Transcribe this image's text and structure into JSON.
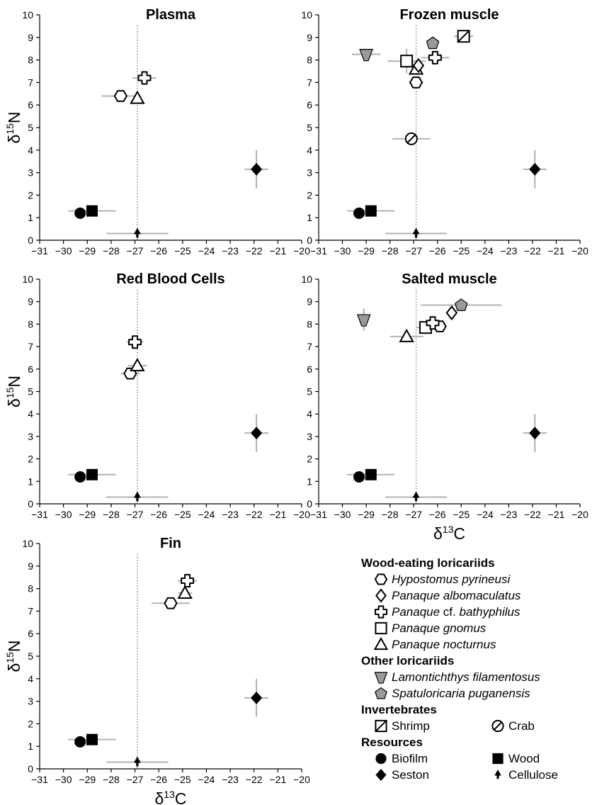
{
  "chart_data": [
    {
      "type": "scatter",
      "title": "Plasma",
      "xlabel": "",
      "ylabel": "δ15N",
      "xlim": [
        -31,
        -20
      ],
      "ylim": [
        0,
        10
      ],
      "vline": -26.9,
      "points": [
        {
          "group": "biofilm",
          "x": -29.3,
          "y": 1.2,
          "xerr": 0,
          "yerr": 0
        },
        {
          "group": "wood",
          "x": -28.8,
          "y": 1.3,
          "xerr": 1.0,
          "yerr": 0
        },
        {
          "group": "seston",
          "x": -21.9,
          "y": 3.15,
          "xerr": 0.5,
          "yerr": 0.85
        },
        {
          "group": "cellulose",
          "x": -26.9,
          "y": 0.3,
          "xerr": 1.3,
          "yerr": 0
        },
        {
          "group": "hypostomus",
          "x": -27.6,
          "y": 6.4,
          "xerr": 0.8,
          "yerr": 0
        },
        {
          "group": "nocturnus",
          "x": -26.9,
          "y": 6.3,
          "xerr": 0,
          "yerr": 0
        },
        {
          "group": "bathyphilus",
          "x": -26.6,
          "y": 7.2,
          "xerr": 0.5,
          "yerr": 0
        }
      ]
    },
    {
      "type": "scatter",
      "title": "Frozen muscle",
      "xlabel": "",
      "ylabel": "",
      "xlim": [
        -31,
        -20
      ],
      "ylim": [
        0,
        10
      ],
      "vline": -26.9,
      "points": [
        {
          "group": "biofilm",
          "x": -29.3,
          "y": 1.2,
          "xerr": 0,
          "yerr": 0
        },
        {
          "group": "wood",
          "x": -28.8,
          "y": 1.3,
          "xerr": 1.0,
          "yerr": 0
        },
        {
          "group": "seston",
          "x": -21.9,
          "y": 3.15,
          "xerr": 0.5,
          "yerr": 0.85
        },
        {
          "group": "cellulose",
          "x": -26.9,
          "y": 0.3,
          "xerr": 1.3,
          "yerr": 0
        },
        {
          "group": "crab",
          "x": -27.1,
          "y": 4.5,
          "xerr": 0.8,
          "yerr": 0
        },
        {
          "group": "hypostomus",
          "x": -26.9,
          "y": 7.0,
          "xerr": 0.3,
          "yerr": 0
        },
        {
          "group": "nocturnus",
          "x": -26.9,
          "y": 7.6,
          "xerr": 0,
          "yerr": 0
        },
        {
          "group": "albomaculatus",
          "x": -26.8,
          "y": 7.75,
          "xerr": 0,
          "yerr": 0
        },
        {
          "group": "gnomus",
          "x": -27.3,
          "y": 7.95,
          "xerr": 0.8,
          "yerr": 0.55
        },
        {
          "group": "bathyphilus",
          "x": -26.1,
          "y": 8.1,
          "xerr": 0.6,
          "yerr": 0
        },
        {
          "group": "lamontichthys",
          "x": -29.0,
          "y": 8.25,
          "xerr": 0.6,
          "yerr": 0
        },
        {
          "group": "spatuloricaria",
          "x": -26.2,
          "y": 8.75,
          "xerr": 0,
          "yerr": 0
        },
        {
          "group": "shrimp",
          "x": -24.9,
          "y": 9.05,
          "xerr": 0.4,
          "yerr": 0
        }
      ]
    },
    {
      "type": "scatter",
      "title": "Red Blood Cells",
      "xlabel": "",
      "ylabel": "δ15N",
      "xlim": [
        -31,
        -20
      ],
      "ylim": [
        0,
        10
      ],
      "vline": -26.9,
      "points": [
        {
          "group": "biofilm",
          "x": -29.3,
          "y": 1.2,
          "xerr": 0,
          "yerr": 0
        },
        {
          "group": "wood",
          "x": -28.8,
          "y": 1.3,
          "xerr": 1.0,
          "yerr": 0
        },
        {
          "group": "seston",
          "x": -21.9,
          "y": 3.15,
          "xerr": 0.5,
          "yerr": 0.85
        },
        {
          "group": "cellulose",
          "x": -26.9,
          "y": 0.3,
          "xerr": 1.3,
          "yerr": 0
        },
        {
          "group": "hypostomus",
          "x": -27.2,
          "y": 5.8,
          "xerr": 0.4,
          "yerr": 0
        },
        {
          "group": "nocturnus",
          "x": -26.9,
          "y": 6.15,
          "xerr": 0.4,
          "yerr": 0
        },
        {
          "group": "bathyphilus",
          "x": -27.0,
          "y": 7.2,
          "xerr": 0.35,
          "yerr": 0
        }
      ]
    },
    {
      "type": "scatter",
      "title": "Salted muscle",
      "xlabel": "δ13C",
      "ylabel": "",
      "xlim": [
        -31,
        -20
      ],
      "ylim": [
        0,
        10
      ],
      "vline": -26.9,
      "points": [
        {
          "group": "biofilm",
          "x": -29.3,
          "y": 1.2,
          "xerr": 0,
          "yerr": 0
        },
        {
          "group": "wood",
          "x": -28.8,
          "y": 1.3,
          "xerr": 1.0,
          "yerr": 0
        },
        {
          "group": "seston",
          "x": -21.9,
          "y": 3.15,
          "xerr": 0.5,
          "yerr": 0.85
        },
        {
          "group": "cellulose",
          "x": -26.9,
          "y": 0.3,
          "xerr": 1.3,
          "yerr": 0
        },
        {
          "group": "nocturnus",
          "x": -27.3,
          "y": 7.45,
          "xerr": 0.7,
          "yerr": 0
        },
        {
          "group": "gnomus",
          "x": -26.5,
          "y": 7.85,
          "xerr": 0.4,
          "yerr": 0
        },
        {
          "group": "hypostomus",
          "x": -25.9,
          "y": 7.9,
          "xerr": 0,
          "yerr": 0
        },
        {
          "group": "bathyphilus",
          "x": -26.2,
          "y": 8.05,
          "xerr": 0.3,
          "yerr": 0
        },
        {
          "group": "lamontichthys",
          "x": -29.1,
          "y": 8.2,
          "xerr": 0,
          "yerr": 0.5
        },
        {
          "group": "albomaculatus",
          "x": -25.4,
          "y": 8.5,
          "xerr": 0,
          "yerr": 0
        },
        {
          "group": "spatuloricaria",
          "x": -25.0,
          "y": 8.85,
          "xerr": 1.7,
          "yerr": 0
        }
      ]
    },
    {
      "type": "scatter",
      "title": "Fin",
      "xlabel": "δ13C",
      "ylabel": "δ15N",
      "xlim": [
        -31,
        -20
      ],
      "ylim": [
        0,
        10
      ],
      "vline": -26.9,
      "points": [
        {
          "group": "biofilm",
          "x": -29.3,
          "y": 1.2,
          "xerr": 0,
          "yerr": 0
        },
        {
          "group": "wood",
          "x": -28.8,
          "y": 1.3,
          "xerr": 1.0,
          "yerr": 0
        },
        {
          "group": "seston",
          "x": -21.9,
          "y": 3.15,
          "xerr": 0.5,
          "yerr": 0.85
        },
        {
          "group": "cellulose",
          "x": -26.9,
          "y": 0.3,
          "xerr": 1.3,
          "yerr": 0
        },
        {
          "group": "hypostomus",
          "x": -25.5,
          "y": 7.35,
          "xerr": 0.8,
          "yerr": 0
        },
        {
          "group": "nocturnus",
          "x": -24.9,
          "y": 7.8,
          "xerr": 0.3,
          "yerr": 0
        },
        {
          "group": "bathyphilus",
          "x": -24.8,
          "y": 8.35,
          "xerr": 0.4,
          "yerr": 0
        }
      ]
    }
  ],
  "axes": {
    "x_ticks": [
      "−31",
      "−30",
      "−29",
      "−28",
      "−27",
      "−26",
      "−25",
      "−24",
      "−23",
      "−22",
      "−21",
      "−20"
    ],
    "y_ticks": [
      "0",
      "1",
      "2",
      "3",
      "4",
      "5",
      "6",
      "7",
      "8",
      "9",
      "10"
    ],
    "ylabel_main": "δ",
    "ylabel_sup": "15",
    "ylabel_end": "N",
    "xlabel_main": "δ",
    "xlabel_sup": "13",
    "xlabel_end": "C"
  },
  "legend": {
    "group_wood_eating": "Wood-eating loricariids",
    "hypostomus": "Hypostomus pyrineusi",
    "albomaculatus": "Panaque albomaculatus",
    "bathyphilus_a": "Panaque",
    "bathyphilus_b": " cf. ",
    "bathyphilus_c": "bathyphilus",
    "gnomus": "Panaque gnomus",
    "nocturnus": "Panaque nocturnus",
    "group_other": "Other loricariids",
    "lamontichthys": "Lamontichthys filamentosus",
    "spatuloricaria": "Spatuloricaria puganensis",
    "group_invert": "Invertebrates",
    "shrimp": "Shrimp",
    "crab": "Crab",
    "group_resources": "Resources",
    "biofilm": "Biofilm",
    "wood": "Wood",
    "seston": "Seston",
    "cellulose": "Cellulose"
  },
  "colors": {
    "marker_gray": "#9a9a9a",
    "errorbar": "#b3b3b3",
    "axis": "#000000",
    "reference_line": "#999999"
  }
}
